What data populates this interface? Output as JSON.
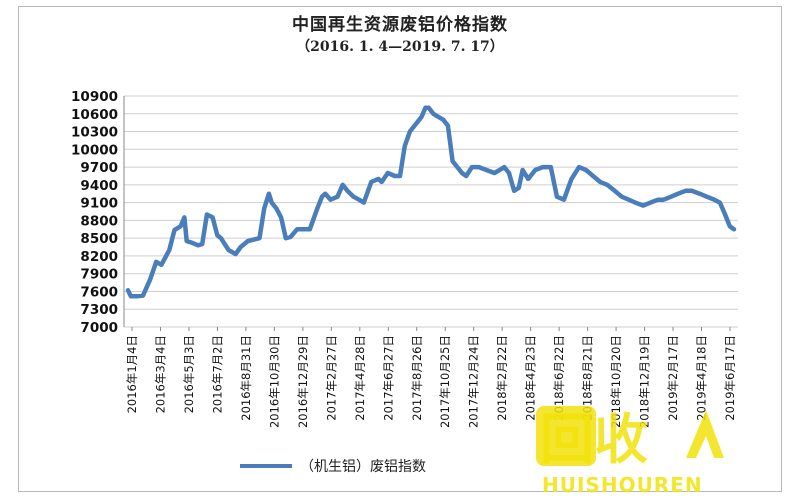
{
  "chart_data": {
    "type": "line",
    "title": "中国再生资源废铝价格指数",
    "subtitle": "（2016. 1. 4—2019. 7. 17）",
    "xlabel": "",
    "ylabel": "",
    "ylim": [
      7000,
      10900
    ],
    "yticks": [
      7000,
      7300,
      7600,
      7900,
      8200,
      8500,
      8800,
      9100,
      9400,
      9700,
      10000,
      10300,
      10600,
      10900
    ],
    "grid": true,
    "legend_position": "bottom",
    "line_color": "#4a7ebb",
    "x_tick_labels": [
      "2016年1月4日",
      "2016年3月4日",
      "2016年5月3日",
      "2016年7月2日",
      "2016年8月31日",
      "2016年10月30日",
      "2016年12月29日",
      "2017年2月27日",
      "2017年4月28日",
      "2017年6月27日",
      "2017年8月26日",
      "2017年10月25日",
      "2017年12月24日",
      "2018年2月22日",
      "2018年4月23日",
      "2018年6月22日",
      "2018年8月21日",
      "2018年10月20日",
      "2018年12月19日",
      "2019年2月17日",
      "2019年4月18日",
      "2019年6月17日"
    ],
    "series": [
      {
        "name": "（机生铝）废铝指数",
        "x": [
          "2016-01-04",
          "2016-01-10",
          "2016-01-25",
          "2016-02-05",
          "2016-02-20",
          "2016-03-04",
          "2016-03-15",
          "2016-04-01",
          "2016-04-12",
          "2016-04-25",
          "2016-05-03",
          "2016-05-08",
          "2016-05-20",
          "2016-06-01",
          "2016-06-10",
          "2016-06-20",
          "2016-07-02",
          "2016-07-12",
          "2016-07-20",
          "2016-08-05",
          "2016-08-20",
          "2016-08-31",
          "2016-09-15",
          "2016-09-30",
          "2016-10-10",
          "2016-10-20",
          "2016-10-30",
          "2016-11-05",
          "2016-11-15",
          "2016-11-25",
          "2016-12-05",
          "2016-12-15",
          "2016-12-29",
          "2017-01-10",
          "2017-01-25",
          "2017-02-10",
          "2017-02-20",
          "2017-02-27",
          "2017-03-10",
          "2017-03-25",
          "2017-04-05",
          "2017-04-15",
          "2017-04-28",
          "2017-05-10",
          "2017-05-20",
          "2017-06-05",
          "2017-06-20",
          "2017-06-27",
          "2017-07-10",
          "2017-07-25",
          "2017-08-05",
          "2017-08-15",
          "2017-08-26",
          "2017-09-05",
          "2017-09-15",
          "2017-09-20",
          "2017-09-28",
          "2017-10-05",
          "2017-10-15",
          "2017-10-25",
          "2017-11-05",
          "2017-11-15",
          "2017-11-25",
          "2017-12-05",
          "2017-12-15",
          "2017-12-24",
          "2018-01-05",
          "2018-01-20",
          "2018-02-05",
          "2018-02-22",
          "2018-03-05",
          "2018-03-15",
          "2018-03-25",
          "2018-04-05",
          "2018-04-15",
          "2018-04-23",
          "2018-05-05",
          "2018-05-20",
          "2018-06-05",
          "2018-06-22",
          "2018-07-05",
          "2018-07-20",
          "2018-08-05",
          "2018-08-21",
          "2018-09-05",
          "2018-09-20",
          "2018-10-05",
          "2018-10-20",
          "2018-11-05",
          "2018-11-20",
          "2018-12-05",
          "2018-12-19",
          "2019-01-05",
          "2019-01-20",
          "2019-02-05",
          "2019-02-17",
          "2019-03-05",
          "2019-03-20",
          "2019-04-05",
          "2019-04-18",
          "2019-05-05",
          "2019-05-20",
          "2019-06-05",
          "2019-06-17",
          "2019-06-28",
          "2019-07-08",
          "2019-07-17"
        ],
        "values": [
          7620,
          7520,
          7520,
          7530,
          7800,
          8100,
          8050,
          8300,
          8640,
          8700,
          8850,
          8450,
          8420,
          8380,
          8400,
          8900,
          8850,
          8550,
          8500,
          8300,
          8230,
          8350,
          8450,
          8480,
          8500,
          9000,
          9250,
          9100,
          9000,
          8850,
          8500,
          8520,
          8650,
          8650,
          8650,
          9000,
          9200,
          9250,
          9150,
          9200,
          9400,
          9300,
          9200,
          9150,
          9100,
          9450,
          9500,
          9450,
          9600,
          9550,
          9550,
          10050,
          10300,
          10400,
          10500,
          10550,
          10700,
          10700,
          10600,
          10550,
          10500,
          10400,
          9800,
          9700,
          9600,
          9550,
          9700,
          9700,
          9650,
          9600,
          9650,
          9700,
          9600,
          9300,
          9350,
          9650,
          9500,
          9650,
          9700,
          9700,
          9200,
          9150,
          9500,
          9700,
          9650,
          9550,
          9450,
          9400,
          9300,
          9200,
          9150,
          9100,
          9050,
          9100,
          9150,
          9150,
          9200,
          9250,
          9300,
          9300,
          9250,
          9200,
          9150,
          9100,
          8900,
          8700,
          8650
        ]
      }
    ]
  },
  "watermark": {
    "text": "回收",
    "subtext": "HUISHOUREN"
  }
}
